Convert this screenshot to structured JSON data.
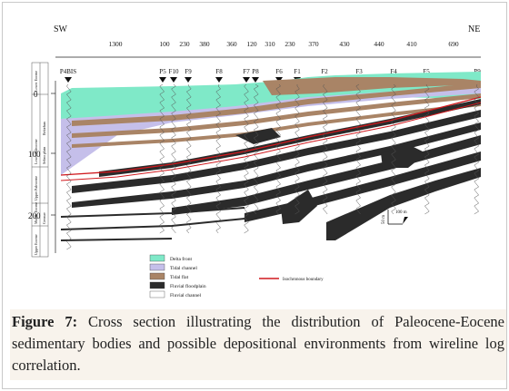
{
  "figure": {
    "direction_left": "SW",
    "direction_right": "NE",
    "spacings": [
      "1300",
      "100",
      "230",
      "380",
      "360",
      "120",
      "310",
      "230",
      "370",
      "430",
      "440",
      "410",
      "690"
    ],
    "wells": [
      "P4BIS",
      "P5",
      "F10",
      "F9",
      "F8",
      "F7",
      "P8",
      "F6",
      "F1",
      "F2",
      "F3",
      "F4",
      "F5",
      "P9"
    ],
    "depth_ticks": [
      "0",
      "100",
      "200"
    ],
    "strat_columns": [
      "Lower Paleocene",
      "Upper Paleocene",
      "Lower Eocene",
      "Middle Eocene",
      "Upper Eocene"
    ],
    "strat_units": [
      "Bekirhan",
      "Selmo plain",
      "Germav",
      "Sinan"
    ],
    "scale_vertical": "50 m",
    "scale_horizontal": "100 m",
    "legend": [
      {
        "label": "Delta front",
        "color": "#7fe9c8"
      },
      {
        "label": "Tidal channel",
        "color": "#c5bfea"
      },
      {
        "label": "Tidal flat",
        "color": "#a98466"
      },
      {
        "label": "Fluvial floodplain",
        "color": "#2b2b2b"
      },
      {
        "label": "Fluvial channel",
        "color": "#ffffff"
      }
    ],
    "boundary_label": "Isochronous boundary",
    "boundary_color": "#d0191e"
  },
  "caption": {
    "label": "Figure 7:",
    "text": " Cross section illustrating the distribution of Paleocene-Eocene sedimentary bodies and possible depositional environments from wireline log correlation."
  }
}
